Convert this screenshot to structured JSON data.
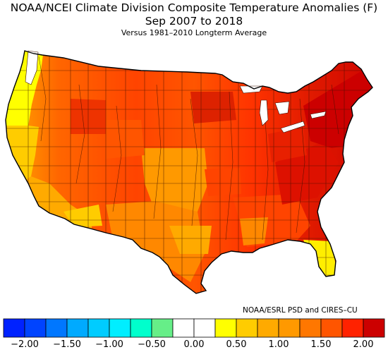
{
  "title": {
    "line1": "NOAA/NCEI Climate Division Composite Temperature Anomalies (F)",
    "line2": "Sep 2007 to 2018"
  },
  "subtitle": "Versus 1981–2010 Longterm Average",
  "credit": "NOAA/ESRL PSD and CIRES–CU",
  "map": {
    "region": "Contiguous United States (climate divisions)",
    "regions_anomaly": [
      {
        "name": "Pacific Northwest coast",
        "value": 0.4,
        "color": "#ffff00"
      },
      {
        "name": "Northern California coast",
        "value": 0.6,
        "color": "#ffcc00"
      },
      {
        "name": "Southern California / Arizona",
        "value": 0.8,
        "color": "#ffaa00"
      },
      {
        "name": "Intermountain West",
        "value": 1.4,
        "color": "#ff5500"
      },
      {
        "name": "Northern Plains",
        "value": 1.5,
        "color": "#ff3300"
      },
      {
        "name": "Central Plains",
        "value": 1.0,
        "color": "#ff9900"
      },
      {
        "name": "Texas",
        "value": 1.1,
        "color": "#ff8800"
      },
      {
        "name": "Upper Midwest",
        "value": 1.6,
        "color": "#ee2200"
      },
      {
        "name": "Southeast",
        "value": 1.4,
        "color": "#ff4400"
      },
      {
        "name": "Florida peninsula",
        "value": 0.5,
        "color": "#ffee00"
      },
      {
        "name": "Mid-Atlantic / Appalachians",
        "value": 1.8,
        "color": "#dd1100"
      },
      {
        "name": "Northeast / New England",
        "value": 2.0,
        "color": "#cc0000"
      }
    ]
  },
  "colorbar": {
    "bins": [
      "#0022ff",
      "#0044ff",
      "#0077ff",
      "#00aaff",
      "#00ccff",
      "#00eeff",
      "#00ffcc",
      "#66ee88",
      "#ffffff",
      "#ffffff",
      "#ffff00",
      "#ffcc00",
      "#ffaa00",
      "#ff9900",
      "#ff7700",
      "#ff5500",
      "#ff2200",
      "#cc0000"
    ],
    "min": -2.25,
    "max": 2.25,
    "ticks": [
      {
        "label": "−2.00",
        "value": -2.0
      },
      {
        "label": "−1.50",
        "value": -1.5
      },
      {
        "label": "−1.00",
        "value": -1.0
      },
      {
        "label": "−0.50",
        "value": -0.5
      },
      {
        "label": "0.00",
        "value": 0.0
      },
      {
        "label": "0.50",
        "value": 0.5
      },
      {
        "label": "1.00",
        "value": 1.0
      },
      {
        "label": "1.50",
        "value": 1.5
      },
      {
        "label": "2.00",
        "value": 2.0
      }
    ]
  }
}
